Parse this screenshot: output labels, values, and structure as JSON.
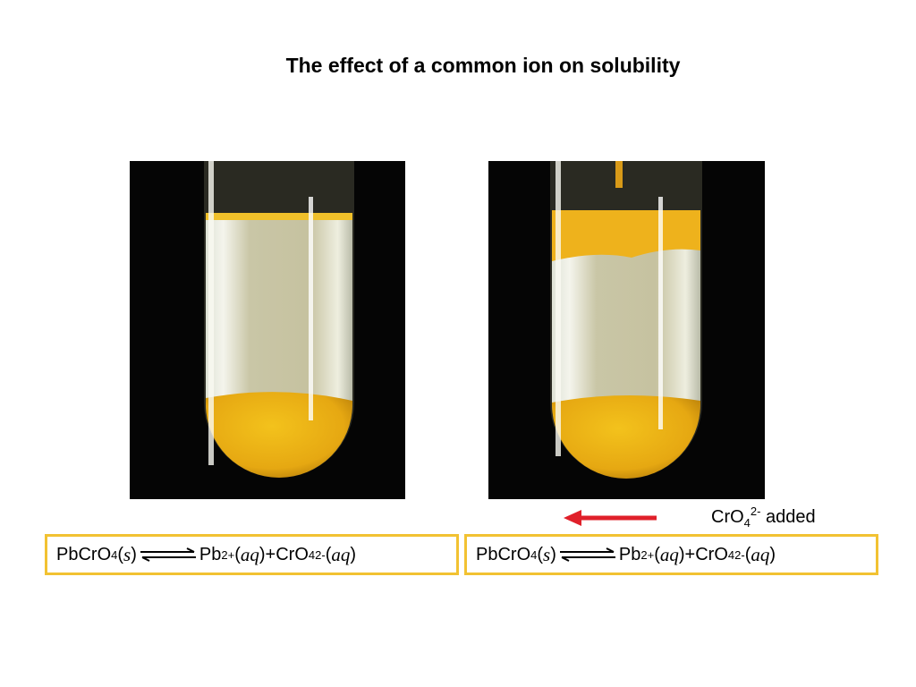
{
  "title": "The effect of a common ion on solubility",
  "equations": [
    {
      "reactant": {
        "formula": "PbCrO",
        "subscript": "4",
        "state": [
          "(",
          "s",
          ")"
        ]
      },
      "products": [
        {
          "formula": "Pb",
          "charge": "2+",
          "state": [
            "(",
            "aq",
            ")"
          ]
        },
        {
          "formula": "CrO",
          "subscript": "4",
          "charge": "2-",
          "state": [
            "(",
            "aq",
            ")"
          ]
        }
      ],
      "plus": "+"
    },
    {
      "reactant": {
        "formula": "PbCrO",
        "subscript": "4",
        "state": [
          "(",
          "s",
          ")"
        ]
      },
      "products": [
        {
          "formula": "Pb",
          "charge": "2+",
          "state": [
            "(",
            "aq",
            ")"
          ]
        },
        {
          "formula": "CrO",
          "subscript": "4",
          "charge": "2-",
          "state": [
            "(",
            "aq",
            ")"
          ]
        }
      ],
      "plus": "+"
    }
  ],
  "annotation": {
    "formula": "CrO",
    "subscript": "4",
    "charge": "2-",
    "text": "added"
  }
}
